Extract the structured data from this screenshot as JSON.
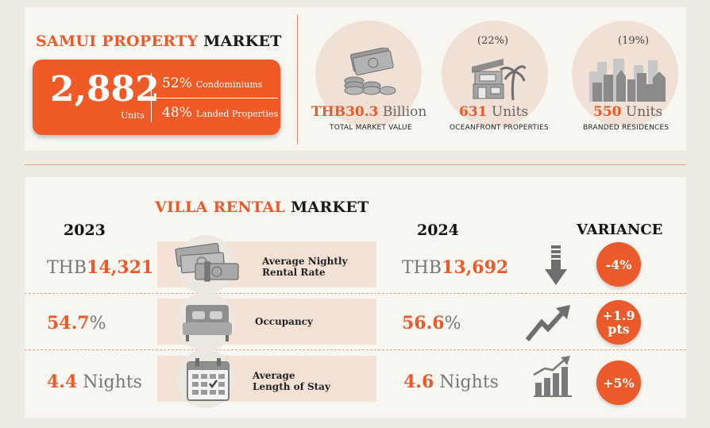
{
  "property_market": {
    "title_accent": "SAMUI PROPERTY",
    "title_rest": "MARKET",
    "total_units": "2,882",
    "total_units_label": "Units",
    "split": [
      {
        "pct": "52%",
        "label": "Condominiums"
      },
      {
        "pct": "48%",
        "label": "Landed Properties"
      }
    ],
    "stats": [
      {
        "value_num": "THB30.3",
        "value_unit": "Billion",
        "caption": "TOTAL MARKET VALUE",
        "share": "",
        "icon": "money-coins-icon"
      },
      {
        "value_num": "631",
        "value_unit": "Units",
        "caption": "OCEANFRONT PROPERTIES",
        "share": "(22%)",
        "icon": "beach-house-icon"
      },
      {
        "value_num": "550",
        "value_unit": "Units",
        "caption": "BRANDED RESIDENCES",
        "share": "(19%)",
        "icon": "city-skyline-icon"
      }
    ]
  },
  "villa_market": {
    "title_accent": "VILLA RENTAL",
    "title_rest": "MARKET",
    "year_2023": "2023",
    "year_2024": "2024",
    "variance_header": "VARIANCE",
    "rows": [
      {
        "label_line1": "Average Nightly",
        "label_line2": "Rental Rate",
        "v2023_prefix": "THB",
        "v2023_num": "14,321",
        "v2023_suffix": "",
        "v2024_prefix": "THB",
        "v2024_num": "13,692",
        "v2024_suffix": "",
        "variance_line1": "-4%",
        "variance_line2": "",
        "icon": "cash-stack-icon",
        "trend_icon": "arrow-down-icon"
      },
      {
        "label_line1": "Occupancy",
        "label_line2": "",
        "v2023_prefix": "",
        "v2023_num": "54.7",
        "v2023_suffix": "%",
        "v2024_prefix": "",
        "v2024_num": "56.6",
        "v2024_suffix": "%",
        "variance_line1": "+1.9",
        "variance_line2": "pts",
        "icon": "bed-icon",
        "trend_icon": "trend-up-icon"
      },
      {
        "label_line1": "Average",
        "label_line2": "Length of Stay",
        "v2023_prefix": "",
        "v2023_num": "4.4",
        "v2023_suffix": " Nights",
        "v2024_prefix": "",
        "v2024_num": "4.6",
        "v2024_suffix": " Nights",
        "variance_line1": "+5%",
        "variance_line2": "",
        "icon": "calendar-icon",
        "trend_icon": "bar-growth-icon"
      }
    ]
  },
  "colors": {
    "accent": "#ea5a2a",
    "panel": "#f8f6f1",
    "background": "#efebe4"
  }
}
